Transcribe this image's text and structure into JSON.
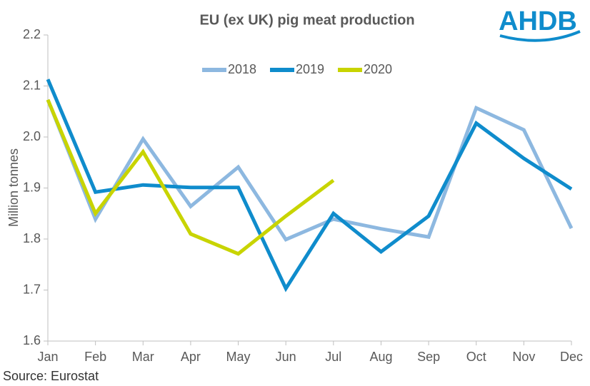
{
  "chart_data": {
    "type": "line",
    "title": "EU (ex UK) pig meat production",
    "y_label": "Million tonnes",
    "source": "Source: Eurostat",
    "logo": "AHDB",
    "categories": [
      "Jan",
      "Feb",
      "Mar",
      "Apr",
      "May",
      "Jun",
      "Jul",
      "Aug",
      "Sep",
      "Oct",
      "Nov",
      "Dec"
    ],
    "series": [
      {
        "name": "2018",
        "color": "#8db8e0",
        "values": [
          2.073,
          1.839,
          1.996,
          1.864,
          1.941,
          1.799,
          1.839,
          1.82,
          1.804,
          2.057,
          2.014,
          1.821
        ]
      },
      {
        "name": "2019",
        "color": "#0f8ccc",
        "values": [
          2.113,
          1.892,
          1.906,
          1.901,
          1.901,
          1.703,
          1.85,
          1.775,
          1.845,
          2.027,
          1.958,
          1.898
        ]
      },
      {
        "name": "2020",
        "color": "#c8d400",
        "values": [
          2.073,
          1.85,
          1.971,
          1.81,
          1.771,
          1.845,
          1.915,
          null,
          null,
          null,
          null,
          null
        ]
      }
    ],
    "ylim": [
      1.6,
      2.2
    ],
    "yticks": [
      1.6,
      1.7,
      1.8,
      1.9,
      {
        "value": 2,
        "label": "2.0"
      },
      2.1,
      2.2
    ],
    "legend": "top",
    "grid": false
  }
}
